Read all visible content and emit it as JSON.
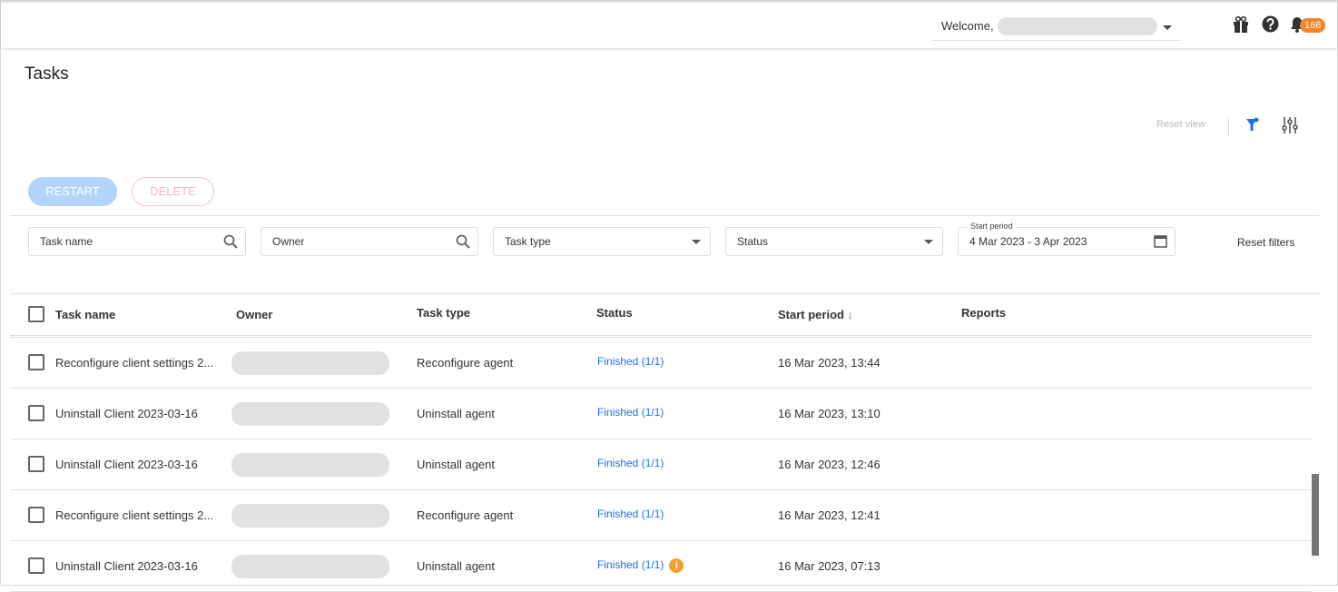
{
  "header": {
    "welcome": "Welcome,",
    "notification_count": "166",
    "icons": [
      "gift-icon",
      "help-icon",
      "bell-icon"
    ]
  },
  "page": {
    "title": "Tasks",
    "reset_view": "Reset view"
  },
  "actions": {
    "restart": "RESTART",
    "delete": "DELETE"
  },
  "filters": {
    "task_name": "Task name",
    "owner": "Owner",
    "task_type": "Task type",
    "status": "Status",
    "start_period_label": "Start period",
    "start_period_value": "4 Mar 2023 - 3 Apr 2023",
    "reset_filters": "Reset filters"
  },
  "table": {
    "columns": [
      "Task name",
      "Owner",
      "Task type",
      "Status",
      "Start period",
      "Reports"
    ],
    "sort_indicator": "↓",
    "rows": [
      {
        "name": "Reconfigure client settings 2...",
        "type": "Reconfigure agent",
        "status": "Finished (1/1)",
        "start": "16 Mar 2023, 13:44",
        "info": false
      },
      {
        "name": "Uninstall Client 2023-03-16",
        "type": "Uninstall agent",
        "status": "Finished (1/1)",
        "start": "16 Mar 2023, 13:10",
        "info": false
      },
      {
        "name": "Uninstall Client 2023-03-16",
        "type": "Uninstall agent",
        "status": "Finished (1/1)",
        "start": "16 Mar 2023, 12:46",
        "info": false
      },
      {
        "name": "Reconfigure client settings 2...",
        "type": "Reconfigure agent",
        "status": "Finished (1/1)",
        "start": "16 Mar 2023, 12:41",
        "info": false
      },
      {
        "name": "Uninstall Client 2023-03-16",
        "type": "Uninstall agent",
        "status": "Finished (1/1)",
        "start": "16 Mar 2023, 07:13",
        "info": true
      }
    ]
  },
  "colors": {
    "accent": "#1a73e8",
    "badge": "#f5842b",
    "info": "#f5a02b"
  }
}
